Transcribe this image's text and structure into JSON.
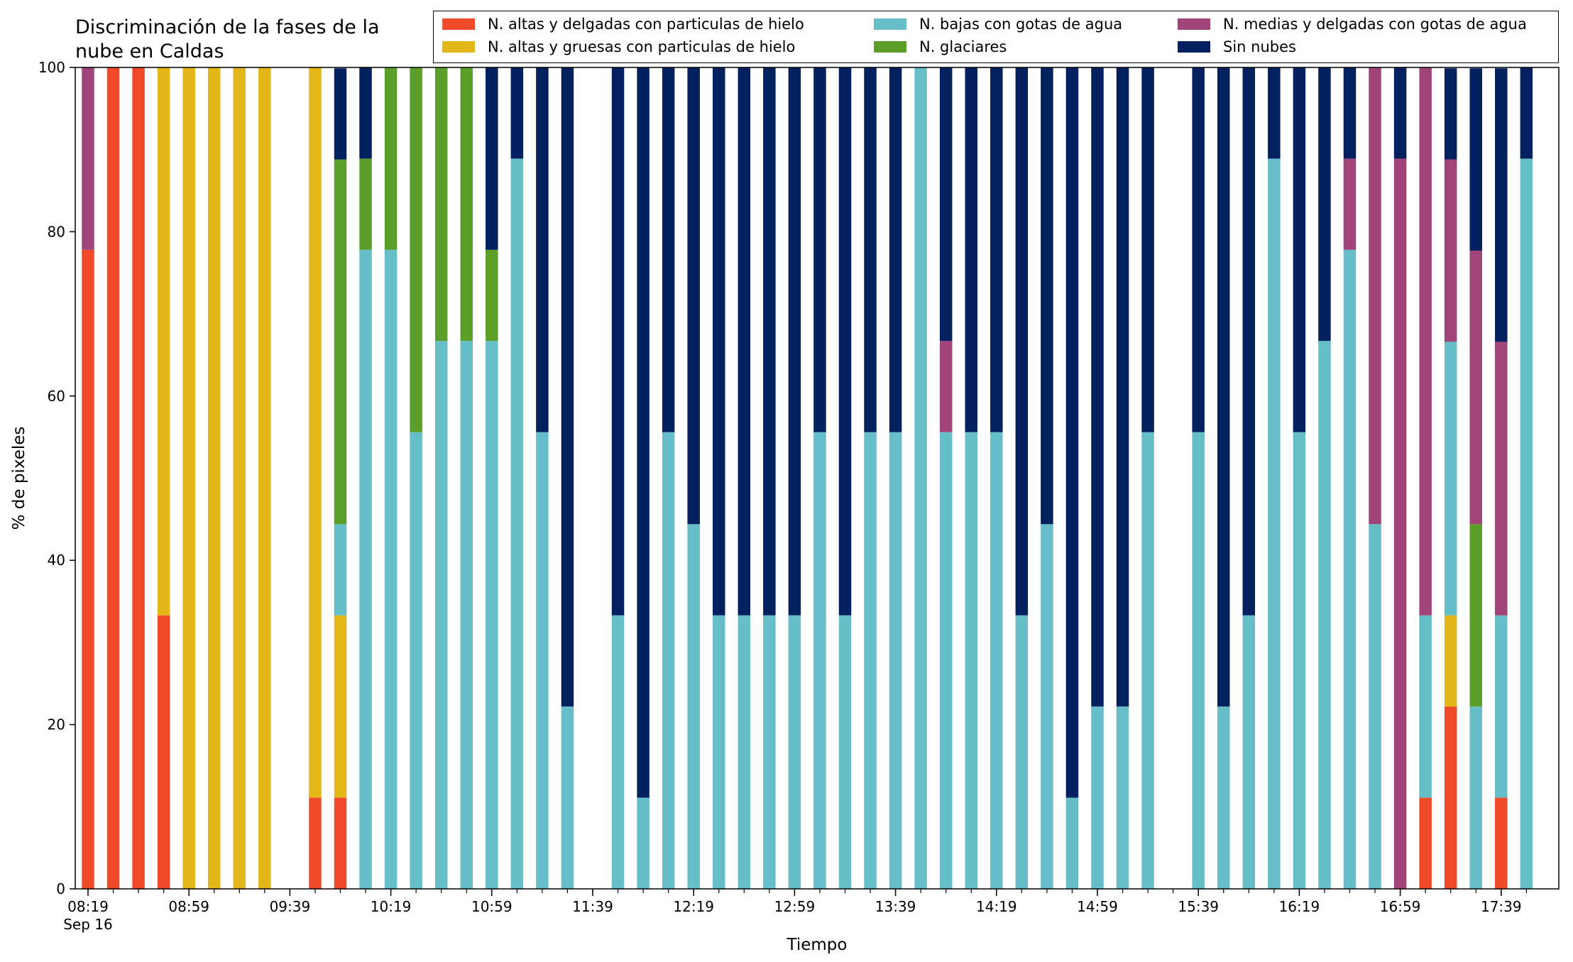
{
  "chart_data": {
    "type": "bar",
    "stacked": true,
    "title": "Discriminación de la fases de la\nnube en Caldas",
    "xlabel": "Tiempo",
    "ylabel": "% de pixeles",
    "ylim": [
      0,
      100
    ],
    "yticks": [
      "0",
      "20",
      "40",
      "60",
      "80",
      "100"
    ],
    "xtick_labels": [
      "08:19\nSep 16",
      "08:59",
      "09:39",
      "10:19",
      "10:59",
      "11:39",
      "12:19",
      "12:59",
      "13:39",
      "14:19",
      "14:59",
      "15:39",
      "16:19",
      "16:59",
      "17:39"
    ],
    "grid": false,
    "legend_position": "top-right",
    "categories": [
      "08:19",
      "08:29",
      "08:39",
      "08:49",
      "08:59",
      "09:09",
      "09:19",
      "09:29",
      "09:39",
      "09:49",
      "09:59",
      "10:09",
      "10:19",
      "10:29",
      "10:39",
      "10:49",
      "10:59",
      "11:09",
      "11:19",
      "11:29",
      "11:39",
      "11:49",
      "11:59",
      "12:09",
      "12:19",
      "12:29",
      "12:39",
      "12:49",
      "12:59",
      "13:09",
      "13:19",
      "13:29",
      "13:39",
      "13:49",
      "13:59",
      "14:09",
      "14:19",
      "14:29",
      "14:39",
      "14:49",
      "14:59",
      "15:09",
      "15:19",
      "15:29",
      "15:39",
      "15:49",
      "15:59",
      "16:09",
      "16:19",
      "16:29",
      "16:39",
      "16:49",
      "16:59",
      "17:09",
      "17:19",
      "17:29",
      "17:39",
      "17:49"
    ],
    "series": [
      {
        "name": "N. altas y delgadas con particulas de hielo",
        "color": "#ef4a2a",
        "values": [
          77.8,
          100,
          100,
          33.3,
          0,
          0,
          0,
          0,
          0,
          11.1,
          11.1,
          0,
          0,
          0,
          0,
          0,
          0,
          0,
          0,
          0,
          0,
          0,
          0,
          0,
          0,
          0,
          0,
          0,
          0,
          0,
          0,
          0,
          0,
          0,
          0,
          0,
          0,
          0,
          0,
          0,
          0,
          0,
          0,
          0,
          0,
          0,
          0,
          0,
          0,
          0,
          0,
          0,
          0,
          11.1,
          22.2,
          0,
          11.1,
          0
        ]
      },
      {
        "name": "N. altas y gruesas con particulas de hielo",
        "color": "#e3b61a",
        "values": [
          0,
          0,
          0,
          66.7,
          100,
          100,
          100,
          100,
          0,
          88.9,
          22.2,
          0,
          0,
          0,
          0,
          0,
          0,
          0,
          0,
          0,
          0,
          0,
          0,
          0,
          0,
          0,
          0,
          0,
          0,
          0,
          0,
          0,
          0,
          0,
          0,
          0,
          0,
          0,
          0,
          0,
          0,
          0,
          0,
          0,
          0,
          0,
          0,
          0,
          0,
          0,
          0,
          0,
          0,
          0,
          11.1,
          0,
          0,
          0
        ]
      },
      {
        "name": "N. bajas con gotas de agua",
        "color": "#66bec9",
        "values": [
          0,
          0,
          0,
          0,
          0,
          0,
          0,
          0,
          0,
          0,
          11.1,
          77.8,
          77.8,
          55.6,
          66.7,
          66.7,
          66.7,
          88.9,
          55.6,
          22.2,
          0,
          33.3,
          11.1,
          55.6,
          44.4,
          33.3,
          33.3,
          33.3,
          33.3,
          55.6,
          33.3,
          55.6,
          55.6,
          100,
          55.6,
          55.6,
          55.6,
          33.3,
          44.4,
          11.1,
          22.2,
          22.2,
          55.6,
          0,
          55.6,
          22.2,
          33.3,
          88.9,
          55.6,
          66.7,
          77.8,
          44.4,
          0,
          22.2,
          33.3,
          22.2,
          22.2,
          88.9
        ]
      },
      {
        "name": "N. glaciares",
        "color": "#5c9e2a",
        "values": [
          0,
          0,
          0,
          0,
          0,
          0,
          0,
          0,
          0,
          0,
          44.4,
          11.1,
          22.2,
          44.4,
          33.3,
          33.3,
          11.1,
          0,
          0,
          0,
          0,
          0,
          0,
          0,
          0,
          0,
          0,
          0,
          0,
          0,
          0,
          0,
          0,
          0,
          0,
          0,
          0,
          0,
          0,
          0,
          0,
          0,
          0,
          0,
          0,
          0,
          0,
          0,
          0,
          0,
          0,
          0,
          0,
          0,
          0,
          22.2,
          0,
          0
        ]
      },
      {
        "name": "N. medias y delgadas con gotas de agua",
        "color": "#a0447a",
        "values": [
          22.2,
          0,
          0,
          0,
          0,
          0,
          0,
          0,
          0,
          0,
          0,
          0,
          0,
          0,
          0,
          0,
          0,
          0,
          0,
          0,
          0,
          0,
          0,
          0,
          0,
          0,
          0,
          0,
          0,
          0,
          0,
          0,
          0,
          0,
          11.1,
          0,
          0,
          0,
          0,
          0,
          0,
          0,
          0,
          0,
          0,
          0,
          0,
          0,
          0,
          0,
          11.1,
          55.6,
          88.9,
          66.7,
          22.2,
          33.3,
          33.3,
          0
        ]
      },
      {
        "name": "Sin nubes",
        "color": "#03205f",
        "values": [
          0,
          0,
          0,
          0,
          0,
          0,
          0,
          0,
          0,
          0,
          11.1,
          11.1,
          0,
          0,
          0,
          0,
          22.2,
          11.1,
          44.4,
          77.8,
          0,
          66.7,
          88.9,
          44.4,
          55.6,
          66.7,
          66.7,
          66.7,
          66.7,
          44.4,
          66.7,
          44.4,
          44.4,
          0,
          33.3,
          44.4,
          44.4,
          66.7,
          55.6,
          88.9,
          77.8,
          77.8,
          44.4,
          0,
          44.4,
          77.8,
          66.7,
          11.1,
          44.4,
          33.3,
          11.1,
          0,
          11.1,
          0,
          11.1,
          22.2,
          33.3,
          11.1
        ]
      }
    ]
  }
}
